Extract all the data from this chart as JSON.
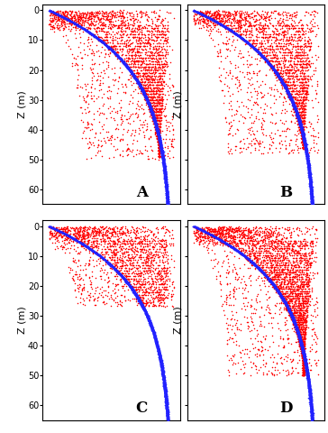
{
  "panels": [
    "A",
    "B",
    "C",
    "D"
  ],
  "blue_color": "#2222ff",
  "red_color": "#ff0000",
  "background": "#ffffff",
  "ylabel": "Z (m)",
  "tick_fontsize": 7,
  "label_fontsize": 8,
  "panel_label_fontsize": 12
}
